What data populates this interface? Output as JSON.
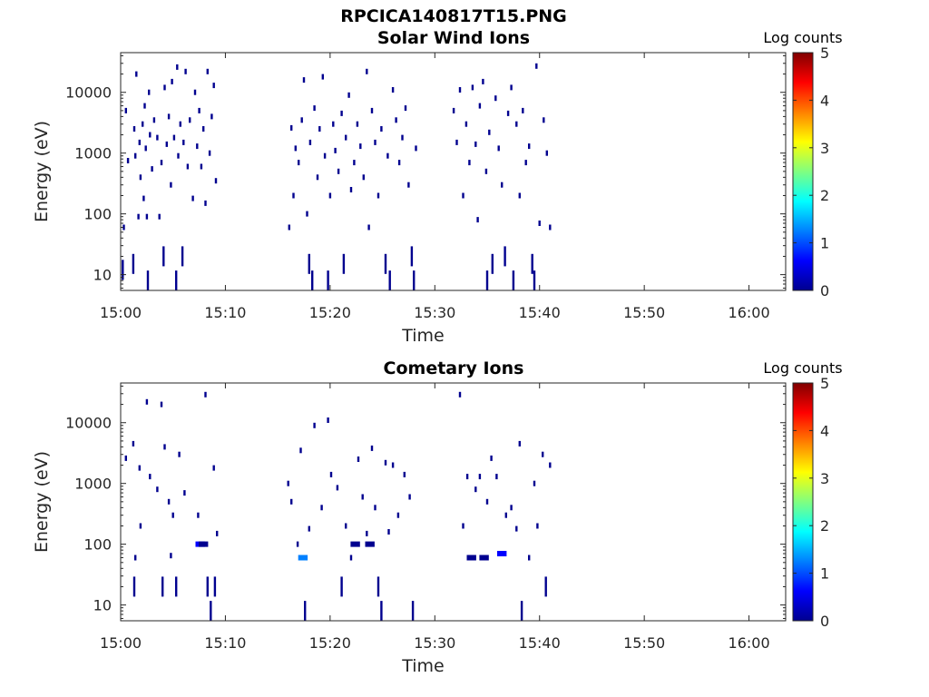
{
  "figure_title": "RPCICA140817T15.PNG",
  "colormap": [
    "#00008f",
    "#0000ff",
    "#0080ff",
    "#00ffff",
    "#80ff80",
    "#ffff00",
    "#ff8000",
    "#ff0000",
    "#800000"
  ],
  "chart_data": [
    {
      "type": "heatmap",
      "title": "Solar Wind Ions",
      "xlabel": "Time",
      "ylabel": "Energy (eV)",
      "x_ticks": [
        "15:00",
        "15:10",
        "15:20",
        "15:30",
        "15:40",
        "15:50",
        "16:00"
      ],
      "x_tick_minutes": [
        0,
        10,
        20,
        30,
        40,
        50,
        60
      ],
      "xlim_minutes": [
        0,
        63.5
      ],
      "y_scale": "log",
      "ylim": [
        5.5,
        45000
      ],
      "y_ticks": [
        10,
        100,
        1000,
        10000
      ],
      "y_tick_labels": [
        "10",
        "100",
        "1000",
        "10000"
      ],
      "colorbar": {
        "title": "Log counts",
        "range": [
          0,
          5
        ],
        "ticks": [
          "0",
          "1",
          "2",
          "3",
          "4",
          "5"
        ]
      },
      "active_intervals_minutes": [
        [
          0,
          9.3
        ],
        [
          15.9,
          28.4
        ],
        [
          31.6,
          41.2
        ]
      ],
      "cells": [
        {
          "t": 0.2,
          "e": 12,
          "c": 0.1
        },
        {
          "t": 0.3,
          "e": 60,
          "c": 0.1
        },
        {
          "t": 0.5,
          "e": 5000,
          "c": 0.1
        },
        {
          "t": 0.7,
          "e": 750,
          "c": 0.1
        },
        {
          "t": 1.2,
          "e": 15,
          "c": 0.2
        },
        {
          "t": 1.3,
          "e": 2500,
          "c": 0.1
        },
        {
          "t": 1.4,
          "e": 900,
          "c": 0.2
        },
        {
          "t": 1.5,
          "e": 20000,
          "c": 0.1
        },
        {
          "t": 1.7,
          "e": 90,
          "c": 0.2
        },
        {
          "t": 1.8,
          "e": 1500,
          "c": 0.1
        },
        {
          "t": 1.9,
          "e": 400,
          "c": 0.1
        },
        {
          "t": 2.1,
          "e": 3000,
          "c": 0.2
        },
        {
          "t": 2.2,
          "e": 180,
          "c": 0.1
        },
        {
          "t": 2.3,
          "e": 6000,
          "c": 0.1
        },
        {
          "t": 2.4,
          "e": 1200,
          "c": 0.2
        },
        {
          "t": 2.5,
          "e": 90,
          "c": 0.2
        },
        {
          "t": 2.6,
          "e": 8,
          "c": 0.1
        },
        {
          "t": 2.7,
          "e": 10000,
          "c": 0.1
        },
        {
          "t": 2.8,
          "e": 2000,
          "c": 0.2
        },
        {
          "t": 3.0,
          "e": 550,
          "c": 0.1
        },
        {
          "t": 3.2,
          "e": 3500,
          "c": 0.1
        },
        {
          "t": 3.5,
          "e": 1800,
          "c": 0.2
        },
        {
          "t": 3.7,
          "e": 90,
          "c": 0.1
        },
        {
          "t": 3.9,
          "e": 700,
          "c": 0.1
        },
        {
          "t": 4.1,
          "e": 20,
          "c": 0.2
        },
        {
          "t": 4.2,
          "e": 12000,
          "c": 0.1
        },
        {
          "t": 4.4,
          "e": 1400,
          "c": 0.2
        },
        {
          "t": 4.6,
          "e": 4000,
          "c": 0.1
        },
        {
          "t": 4.8,
          "e": 300,
          "c": 0.1
        },
        {
          "t": 4.9,
          "e": 15000,
          "c": 0.1
        },
        {
          "t": 5.1,
          "e": 1800,
          "c": 0.2
        },
        {
          "t": 5.3,
          "e": 8,
          "c": 0.1
        },
        {
          "t": 5.4,
          "e": 26000,
          "c": 0.1
        },
        {
          "t": 5.5,
          "e": 900,
          "c": 0.2
        },
        {
          "t": 5.7,
          "e": 3000,
          "c": 0.1
        },
        {
          "t": 5.9,
          "e": 20,
          "c": 0.1
        },
        {
          "t": 6.0,
          "e": 1500,
          "c": 0.2
        },
        {
          "t": 6.2,
          "e": 22000,
          "c": 0.1
        },
        {
          "t": 6.4,
          "e": 600,
          "c": 0.1
        },
        {
          "t": 6.6,
          "e": 3500,
          "c": 0.2
        },
        {
          "t": 6.9,
          "e": 180,
          "c": 0.1
        },
        {
          "t": 7.1,
          "e": 10000,
          "c": 0.1
        },
        {
          "t": 7.3,
          "e": 1300,
          "c": 0.2
        },
        {
          "t": 7.5,
          "e": 5000,
          "c": 0.1
        },
        {
          "t": 7.7,
          "e": 600,
          "c": 0.2
        },
        {
          "t": 7.9,
          "e": 2500,
          "c": 0.1
        },
        {
          "t": 8.1,
          "e": 150,
          "c": 0.1
        },
        {
          "t": 8.3,
          "e": 22000,
          "c": 0.1
        },
        {
          "t": 8.5,
          "e": 1000,
          "c": 0.2
        },
        {
          "t": 8.7,
          "e": 4000,
          "c": 0.1
        },
        {
          "t": 8.9,
          "e": 13000,
          "c": 0.1
        },
        {
          "t": 9.1,
          "e": 350,
          "c": 0.1
        },
        {
          "t": 16.1,
          "e": 60,
          "c": 0.2
        },
        {
          "t": 16.3,
          "e": 2600,
          "c": 0.1
        },
        {
          "t": 16.5,
          "e": 200,
          "c": 0.1
        },
        {
          "t": 16.7,
          "e": 1200,
          "c": 0.2
        },
        {
          "t": 17.0,
          "e": 700,
          "c": 0.1
        },
        {
          "t": 17.3,
          "e": 3500,
          "c": 0.1
        },
        {
          "t": 17.5,
          "e": 16000,
          "c": 0.1
        },
        {
          "t": 17.8,
          "e": 100,
          "c": 0.2
        },
        {
          "t": 18.0,
          "e": 15,
          "c": 0.2
        },
        {
          "t": 18.1,
          "e": 1500,
          "c": 0.1
        },
        {
          "t": 18.3,
          "e": 8,
          "c": 0.1
        },
        {
          "t": 18.5,
          "e": 5500,
          "c": 0.1
        },
        {
          "t": 18.8,
          "e": 400,
          "c": 0.2
        },
        {
          "t": 19.0,
          "e": 2500,
          "c": 0.1
        },
        {
          "t": 19.3,
          "e": 18000,
          "c": 0.1
        },
        {
          "t": 19.5,
          "e": 900,
          "c": 0.2
        },
        {
          "t": 19.8,
          "e": 8,
          "c": 0.1
        },
        {
          "t": 20.0,
          "e": 200,
          "c": 0.1
        },
        {
          "t": 20.3,
          "e": 3000,
          "c": 0.1
        },
        {
          "t": 20.5,
          "e": 1100,
          "c": 0.2
        },
        {
          "t": 20.8,
          "e": 500,
          "c": 0.1
        },
        {
          "t": 21.1,
          "e": 4500,
          "c": 0.1
        },
        {
          "t": 21.3,
          "e": 15,
          "c": 0.2
        },
        {
          "t": 21.5,
          "e": 1800,
          "c": 0.1
        },
        {
          "t": 21.8,
          "e": 9000,
          "c": 0.1
        },
        {
          "t": 22.0,
          "e": 250,
          "c": 0.2
        },
        {
          "t": 22.3,
          "e": 700,
          "c": 0.1
        },
        {
          "t": 22.6,
          "e": 3000,
          "c": 0.1
        },
        {
          "t": 22.9,
          "e": 1300,
          "c": 0.2
        },
        {
          "t": 23.2,
          "e": 400,
          "c": 0.1
        },
        {
          "t": 23.5,
          "e": 22000,
          "c": 0.1
        },
        {
          "t": 23.7,
          "e": 60,
          "c": 0.2
        },
        {
          "t": 24.0,
          "e": 5000,
          "c": 0.1
        },
        {
          "t": 24.3,
          "e": 1500,
          "c": 0.2
        },
        {
          "t": 24.6,
          "e": 200,
          "c": 0.1
        },
        {
          "t": 24.9,
          "e": 2500,
          "c": 0.1
        },
        {
          "t": 25.3,
          "e": 15,
          "c": 0.2
        },
        {
          "t": 25.5,
          "e": 900,
          "c": 0.1
        },
        {
          "t": 25.7,
          "e": 8,
          "c": 0.1
        },
        {
          "t": 26.0,
          "e": 11000,
          "c": 0.1
        },
        {
          "t": 26.3,
          "e": 3500,
          "c": 0.2
        },
        {
          "t": 26.6,
          "e": 700,
          "c": 0.1
        },
        {
          "t": 26.9,
          "e": 1800,
          "c": 0.1
        },
        {
          "t": 27.2,
          "e": 5500,
          "c": 0.1
        },
        {
          "t": 27.5,
          "e": 300,
          "c": 0.2
        },
        {
          "t": 27.8,
          "e": 20,
          "c": 0.2
        },
        {
          "t": 28.0,
          "e": 8,
          "c": 0.1
        },
        {
          "t": 28.2,
          "e": 1200,
          "c": 0.1
        },
        {
          "t": 31.8,
          "e": 5000,
          "c": 0.1
        },
        {
          "t": 32.1,
          "e": 1500,
          "c": 0.2
        },
        {
          "t": 32.4,
          "e": 11000,
          "c": 0.1
        },
        {
          "t": 32.7,
          "e": 200,
          "c": 0.1
        },
        {
          "t": 33.0,
          "e": 3000,
          "c": 0.1
        },
        {
          "t": 33.3,
          "e": 700,
          "c": 0.2
        },
        {
          "t": 33.6,
          "e": 12000,
          "c": 0.1
        },
        {
          "t": 33.9,
          "e": 1400,
          "c": 0.1
        },
        {
          "t": 34.1,
          "e": 80,
          "c": 0.2
        },
        {
          "t": 34.3,
          "e": 6000,
          "c": 0.1
        },
        {
          "t": 34.6,
          "e": 15000,
          "c": 0.1
        },
        {
          "t": 34.9,
          "e": 500,
          "c": 0.2
        },
        {
          "t": 35.0,
          "e": 8,
          "c": 0.1
        },
        {
          "t": 35.2,
          "e": 2200,
          "c": 0.1
        },
        {
          "t": 35.5,
          "e": 15,
          "c": 0.2
        },
        {
          "t": 35.8,
          "e": 8000,
          "c": 0.1
        },
        {
          "t": 36.1,
          "e": 1200,
          "c": 0.1
        },
        {
          "t": 36.4,
          "e": 300,
          "c": 0.2
        },
        {
          "t": 36.7,
          "e": 20,
          "c": 0.1
        },
        {
          "t": 37.0,
          "e": 4500,
          "c": 0.1
        },
        {
          "t": 37.3,
          "e": 12000,
          "c": 0.1
        },
        {
          "t": 37.5,
          "e": 8,
          "c": 0.1
        },
        {
          "t": 37.8,
          "e": 3000,
          "c": 0.2
        },
        {
          "t": 38.1,
          "e": 200,
          "c": 0.1
        },
        {
          "t": 38.4,
          "e": 5000,
          "c": 0.1
        },
        {
          "t": 38.7,
          "e": 700,
          "c": 0.1
        },
        {
          "t": 39.0,
          "e": 1300,
          "c": 0.2
        },
        {
          "t": 39.3,
          "e": 15,
          "c": 0.1
        },
        {
          "t": 39.5,
          "e": 8,
          "c": 0.1
        },
        {
          "t": 39.7,
          "e": 27000,
          "c": 0.1
        },
        {
          "t": 40.0,
          "e": 70,
          "c": 0.2
        },
        {
          "t": 40.4,
          "e": 3500,
          "c": 0.1
        },
        {
          "t": 40.7,
          "e": 1000,
          "c": 0.1
        },
        {
          "t": 41.0,
          "e": 60,
          "c": 0.2
        }
      ]
    },
    {
      "type": "heatmap",
      "title": "Cometary Ions",
      "xlabel": "Time",
      "ylabel": "Energy (eV)",
      "x_ticks": [
        "15:00",
        "15:10",
        "15:20",
        "15:30",
        "15:40",
        "15:50",
        "16:00"
      ],
      "x_tick_minutes": [
        0,
        10,
        20,
        30,
        40,
        50,
        60
      ],
      "xlim_minutes": [
        0,
        63.5
      ],
      "y_scale": "log",
      "ylim": [
        5.5,
        45000
      ],
      "y_ticks": [
        10,
        100,
        1000,
        10000
      ],
      "y_tick_labels": [
        "10",
        "100",
        "1000",
        "10000"
      ],
      "colorbar": {
        "title": "Log counts",
        "range": [
          0,
          5
        ],
        "ticks": [
          "0",
          "1",
          "2",
          "3",
          "4",
          "5"
        ]
      },
      "active_intervals_minutes": [
        [
          0,
          9.3
        ],
        [
          15.9,
          28.4
        ],
        [
          31.6,
          41.2
        ]
      ],
      "cells": [
        {
          "t": 0.5,
          "e": 2600,
          "c": 0.1
        },
        {
          "t": 1.2,
          "e": 4500,
          "c": 0.1
        },
        {
          "t": 1.3,
          "e": 20,
          "c": 0.2
        },
        {
          "t": 1.4,
          "e": 60,
          "c": 0.1
        },
        {
          "t": 1.8,
          "e": 1800,
          "c": 0.1
        },
        {
          "t": 1.9,
          "e": 200,
          "c": 0.2
        },
        {
          "t": 2.5,
          "e": 22000,
          "c": 0.1
        },
        {
          "t": 2.8,
          "e": 1300,
          "c": 0.1
        },
        {
          "t": 3.5,
          "e": 800,
          "c": 0.1
        },
        {
          "t": 3.9,
          "e": 20000,
          "c": 0.1
        },
        {
          "t": 4.0,
          "e": 20,
          "c": 0.2
        },
        {
          "t": 4.2,
          "e": 4000,
          "c": 0.1
        },
        {
          "t": 4.6,
          "e": 500,
          "c": 0.1
        },
        {
          "t": 4.8,
          "e": 65,
          "c": 0.2
        },
        {
          "t": 5.0,
          "e": 300,
          "c": 0.1
        },
        {
          "t": 5.3,
          "e": 20,
          "c": 0.2
        },
        {
          "t": 5.6,
          "e": 3000,
          "c": 0.1
        },
        {
          "t": 6.1,
          "e": 700,
          "c": 0.1
        },
        {
          "t": 7.4,
          "e": 300,
          "c": 0.1
        },
        {
          "t": 7.6,
          "e": 100,
          "c": 0.8
        },
        {
          "t": 7.9,
          "e": 100,
          "c": 0.4
        },
        {
          "t": 8.1,
          "e": 29000,
          "c": 0.1
        },
        {
          "t": 8.3,
          "e": 20,
          "c": 0.2
        },
        {
          "t": 8.6,
          "e": 8,
          "c": 0.1
        },
        {
          "t": 8.9,
          "e": 1800,
          "c": 0.1
        },
        {
          "t": 9.2,
          "e": 150,
          "c": 0.2
        },
        {
          "t": 9.0,
          "e": 20,
          "c": 0.1
        },
        {
          "t": 16.0,
          "e": 1000,
          "c": 0.1
        },
        {
          "t": 16.3,
          "e": 500,
          "c": 0.1
        },
        {
          "t": 16.9,
          "e": 100,
          "c": 0.2
        },
        {
          "t": 17.2,
          "e": 3500,
          "c": 0.1
        },
        {
          "t": 17.4,
          "e": 60,
          "c": 1.6
        },
        {
          "t": 17.6,
          "e": 8,
          "c": 0.1
        },
        {
          "t": 18.0,
          "e": 180,
          "c": 0.2
        },
        {
          "t": 18.5,
          "e": 9000,
          "c": 0.1
        },
        {
          "t": 19.2,
          "e": 400,
          "c": 0.1
        },
        {
          "t": 19.8,
          "e": 11000,
          "c": 0.1
        },
        {
          "t": 20.1,
          "e": 1400,
          "c": 0.1
        },
        {
          "t": 20.7,
          "e": 850,
          "c": 0.1
        },
        {
          "t": 21.1,
          "e": 20,
          "c": 0.2
        },
        {
          "t": 21.5,
          "e": 200,
          "c": 0.1
        },
        {
          "t": 22.0,
          "e": 60,
          "c": 0.2
        },
        {
          "t": 22.4,
          "e": 100,
          "c": 0.4
        },
        {
          "t": 22.7,
          "e": 2500,
          "c": 0.1
        },
        {
          "t": 23.1,
          "e": 600,
          "c": 0.1
        },
        {
          "t": 23.5,
          "e": 150,
          "c": 0.2
        },
        {
          "t": 23.8,
          "e": 100,
          "c": 0.4
        },
        {
          "t": 24.0,
          "e": 3800,
          "c": 0.1
        },
        {
          "t": 24.3,
          "e": 400,
          "c": 0.1
        },
        {
          "t": 24.6,
          "e": 20,
          "c": 0.2
        },
        {
          "t": 24.9,
          "e": 8,
          "c": 0.1
        },
        {
          "t": 25.3,
          "e": 2200,
          "c": 0.1
        },
        {
          "t": 25.6,
          "e": 160,
          "c": 0.2
        },
        {
          "t": 26.0,
          "e": 2000,
          "c": 0.1
        },
        {
          "t": 26.5,
          "e": 300,
          "c": 0.1
        },
        {
          "t": 27.1,
          "e": 1400,
          "c": 0.1
        },
        {
          "t": 27.6,
          "e": 600,
          "c": 0.1
        },
        {
          "t": 27.9,
          "e": 8,
          "c": 0.1
        },
        {
          "t": 32.4,
          "e": 29000,
          "c": 0.1
        },
        {
          "t": 32.7,
          "e": 200,
          "c": 0.1
        },
        {
          "t": 33.1,
          "e": 1300,
          "c": 0.1
        },
        {
          "t": 33.5,
          "e": 60,
          "c": 0.4
        },
        {
          "t": 33.9,
          "e": 800,
          "c": 0.1
        },
        {
          "t": 34.3,
          "e": 1300,
          "c": 0.1
        },
        {
          "t": 34.7,
          "e": 60,
          "c": 0.3
        },
        {
          "t": 35.0,
          "e": 500,
          "c": 0.1
        },
        {
          "t": 35.4,
          "e": 2600,
          "c": 0.1
        },
        {
          "t": 35.9,
          "e": 1300,
          "c": 0.1
        },
        {
          "t": 36.4,
          "e": 70,
          "c": 0.6
        },
        {
          "t": 36.8,
          "e": 300,
          "c": 0.1
        },
        {
          "t": 37.3,
          "e": 400,
          "c": 0.1
        },
        {
          "t": 37.8,
          "e": 180,
          "c": 0.1
        },
        {
          "t": 38.1,
          "e": 4500,
          "c": 0.1
        },
        {
          "t": 38.3,
          "e": 8,
          "c": 0.1
        },
        {
          "t": 39.0,
          "e": 60,
          "c": 0.2
        },
        {
          "t": 39.5,
          "e": 1000,
          "c": 0.1
        },
        {
          "t": 39.8,
          "e": 200,
          "c": 0.2
        },
        {
          "t": 40.3,
          "e": 3000,
          "c": 0.1
        },
        {
          "t": 40.6,
          "e": 20,
          "c": 0.2
        },
        {
          "t": 41.0,
          "e": 2000,
          "c": 0.1
        }
      ]
    }
  ]
}
